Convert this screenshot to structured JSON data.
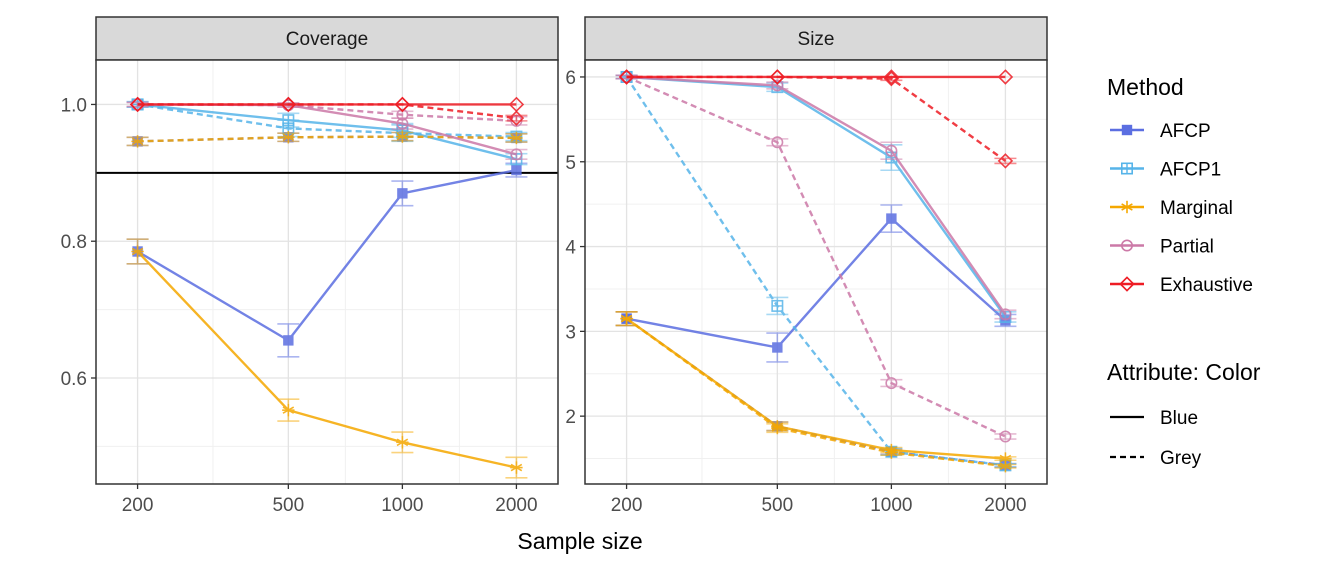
{
  "chart_data": {
    "type": "line",
    "xlabel": "Sample size",
    "x_ticks": [
      200,
      500,
      1000,
      2000
    ],
    "x_scale": "log",
    "target_line": {
      "panel": "Coverage",
      "y": 0.9
    },
    "legend": {
      "method_title": "Method",
      "methods": [
        {
          "name": "AFCP",
          "color": "#5b6ee1",
          "marker": "filled-square"
        },
        {
          "name": "AFCP1",
          "color": "#56b4e9",
          "marker": "crossed-square"
        },
        {
          "name": "Marginal",
          "color": "#f5a800",
          "marker": "asterisk"
        },
        {
          "name": "Partial",
          "color": "#cc79a7",
          "marker": "open-circle"
        },
        {
          "name": "Exhaustive",
          "color": "#ee1c24",
          "marker": "open-diamond"
        }
      ],
      "attribute_title": "Attribute: Color",
      "attributes": [
        {
          "name": "Blue",
          "linetype": "solid"
        },
        {
          "name": "Grey",
          "linetype": "dashed"
        }
      ]
    },
    "panels": [
      {
        "title": "Coverage",
        "ylim": [
          0.445,
          1.065
        ],
        "y_ticks": [
          0.6,
          0.8,
          1.0
        ],
        "y_tick_labels": [
          "0.6",
          "0.8",
          "1.0"
        ],
        "series": [
          {
            "method": "AFCP",
            "attribute": "Blue",
            "values": [
              0.785,
              0.655,
              0.87,
              0.904
            ],
            "errors": [
              0.018,
              0.024,
              0.018,
              0.01
            ]
          },
          {
            "method": "AFCP",
            "attribute": "Grey",
            "values": [
              0.946,
              0.952,
              0.953,
              0.951
            ],
            "errors": [
              0.006,
              0.006,
              0.006,
              0.006
            ]
          },
          {
            "method": "AFCP1",
            "attribute": "Blue",
            "values": [
              1.0,
              0.977,
              0.962,
              0.92
            ],
            "errors": [
              0.004,
              0.01,
              0.01,
              0.008
            ]
          },
          {
            "method": "AFCP1",
            "attribute": "Grey",
            "values": [
              1.0,
              0.965,
              0.958,
              0.953
            ],
            "errors": [
              0.004,
              0.012,
              0.012,
              0.006
            ]
          },
          {
            "method": "Marginal",
            "attribute": "Blue",
            "values": [
              0.785,
              0.553,
              0.506,
              0.469
            ],
            "errors": [
              0.018,
              0.016,
              0.015,
              0.015
            ]
          },
          {
            "method": "Marginal",
            "attribute": "Grey",
            "values": [
              0.946,
              0.952,
              0.953,
              0.951
            ],
            "errors": [
              0.006,
              0.006,
              0.006,
              0.006
            ]
          },
          {
            "method": "Partial",
            "attribute": "Blue",
            "values": [
              1.0,
              0.999,
              0.972,
              0.927
            ],
            "errors": [
              0.003,
              0.003,
              0.008,
              0.007
            ]
          },
          {
            "method": "Partial",
            "attribute": "Grey",
            "values": [
              1.0,
              0.999,
              0.985,
              0.976
            ],
            "errors": [
              0.003,
              0.003,
              0.005,
              0.006
            ]
          },
          {
            "method": "Exhaustive",
            "attribute": "Blue",
            "values": [
              1.0,
              1.0,
              1.0,
              1.0
            ],
            "errors": [
              0,
              0,
              0,
              0
            ]
          },
          {
            "method": "Exhaustive",
            "attribute": "Grey",
            "values": [
              1.0,
              1.0,
              1.0,
              0.98
            ],
            "errors": [
              0,
              0,
              0,
              0.004
            ]
          }
        ]
      },
      {
        "title": "Size",
        "ylim": [
          1.2,
          6.2
        ],
        "y_ticks": [
          2,
          3,
          4,
          5,
          6
        ],
        "y_tick_labels": [
          "2",
          "3",
          "4",
          "5",
          "6"
        ],
        "series": [
          {
            "method": "AFCP",
            "attribute": "Blue",
            "values": [
              3.15,
              2.81,
              4.33,
              3.13
            ],
            "errors": [
              0.08,
              0.17,
              0.16,
              0.07
            ]
          },
          {
            "method": "AFCP",
            "attribute": "Grey",
            "values": [
              3.15,
              1.88,
              1.58,
              1.42
            ],
            "errors": [
              0.08,
              0.05,
              0.03,
              0.02
            ]
          },
          {
            "method": "AFCP1",
            "attribute": "Blue",
            "values": [
              6.0,
              5.88,
              5.05,
              3.17
            ],
            "errors": [
              0.02,
              0.05,
              0.15,
              0.06
            ]
          },
          {
            "method": "AFCP1",
            "attribute": "Grey",
            "values": [
              6.0,
              3.3,
              1.58,
              1.42
            ],
            "errors": [
              0.02,
              0.1,
              0.04,
              0.02
            ]
          },
          {
            "method": "Marginal",
            "attribute": "Blue",
            "values": [
              3.15,
              1.88,
              1.6,
              1.5
            ],
            "errors": [
              0.08,
              0.05,
              0.03,
              0.02
            ]
          },
          {
            "method": "Marginal",
            "attribute": "Grey",
            "values": [
              3.15,
              1.86,
              1.57,
              1.41
            ],
            "errors": [
              0.08,
              0.05,
              0.03,
              0.02
            ]
          },
          {
            "method": "Partial",
            "attribute": "Blue",
            "values": [
              6.0,
              5.9,
              5.13,
              3.2
            ],
            "errors": [
              0.02,
              0.04,
              0.1,
              0.05
            ]
          },
          {
            "method": "Partial",
            "attribute": "Grey",
            "values": [
              6.0,
              5.23,
              2.39,
              1.76
            ],
            "errors": [
              0.02,
              0.04,
              0.04,
              0.03
            ]
          },
          {
            "method": "Exhaustive",
            "attribute": "Blue",
            "values": [
              6.0,
              6.0,
              6.0,
              6.0
            ],
            "errors": [
              0,
              0,
              0,
              0
            ]
          },
          {
            "method": "Exhaustive",
            "attribute": "Grey",
            "values": [
              6.0,
              6.0,
              5.98,
              5.01
            ],
            "errors": [
              0,
              0,
              0.02,
              0.03
            ]
          }
        ]
      }
    ]
  }
}
